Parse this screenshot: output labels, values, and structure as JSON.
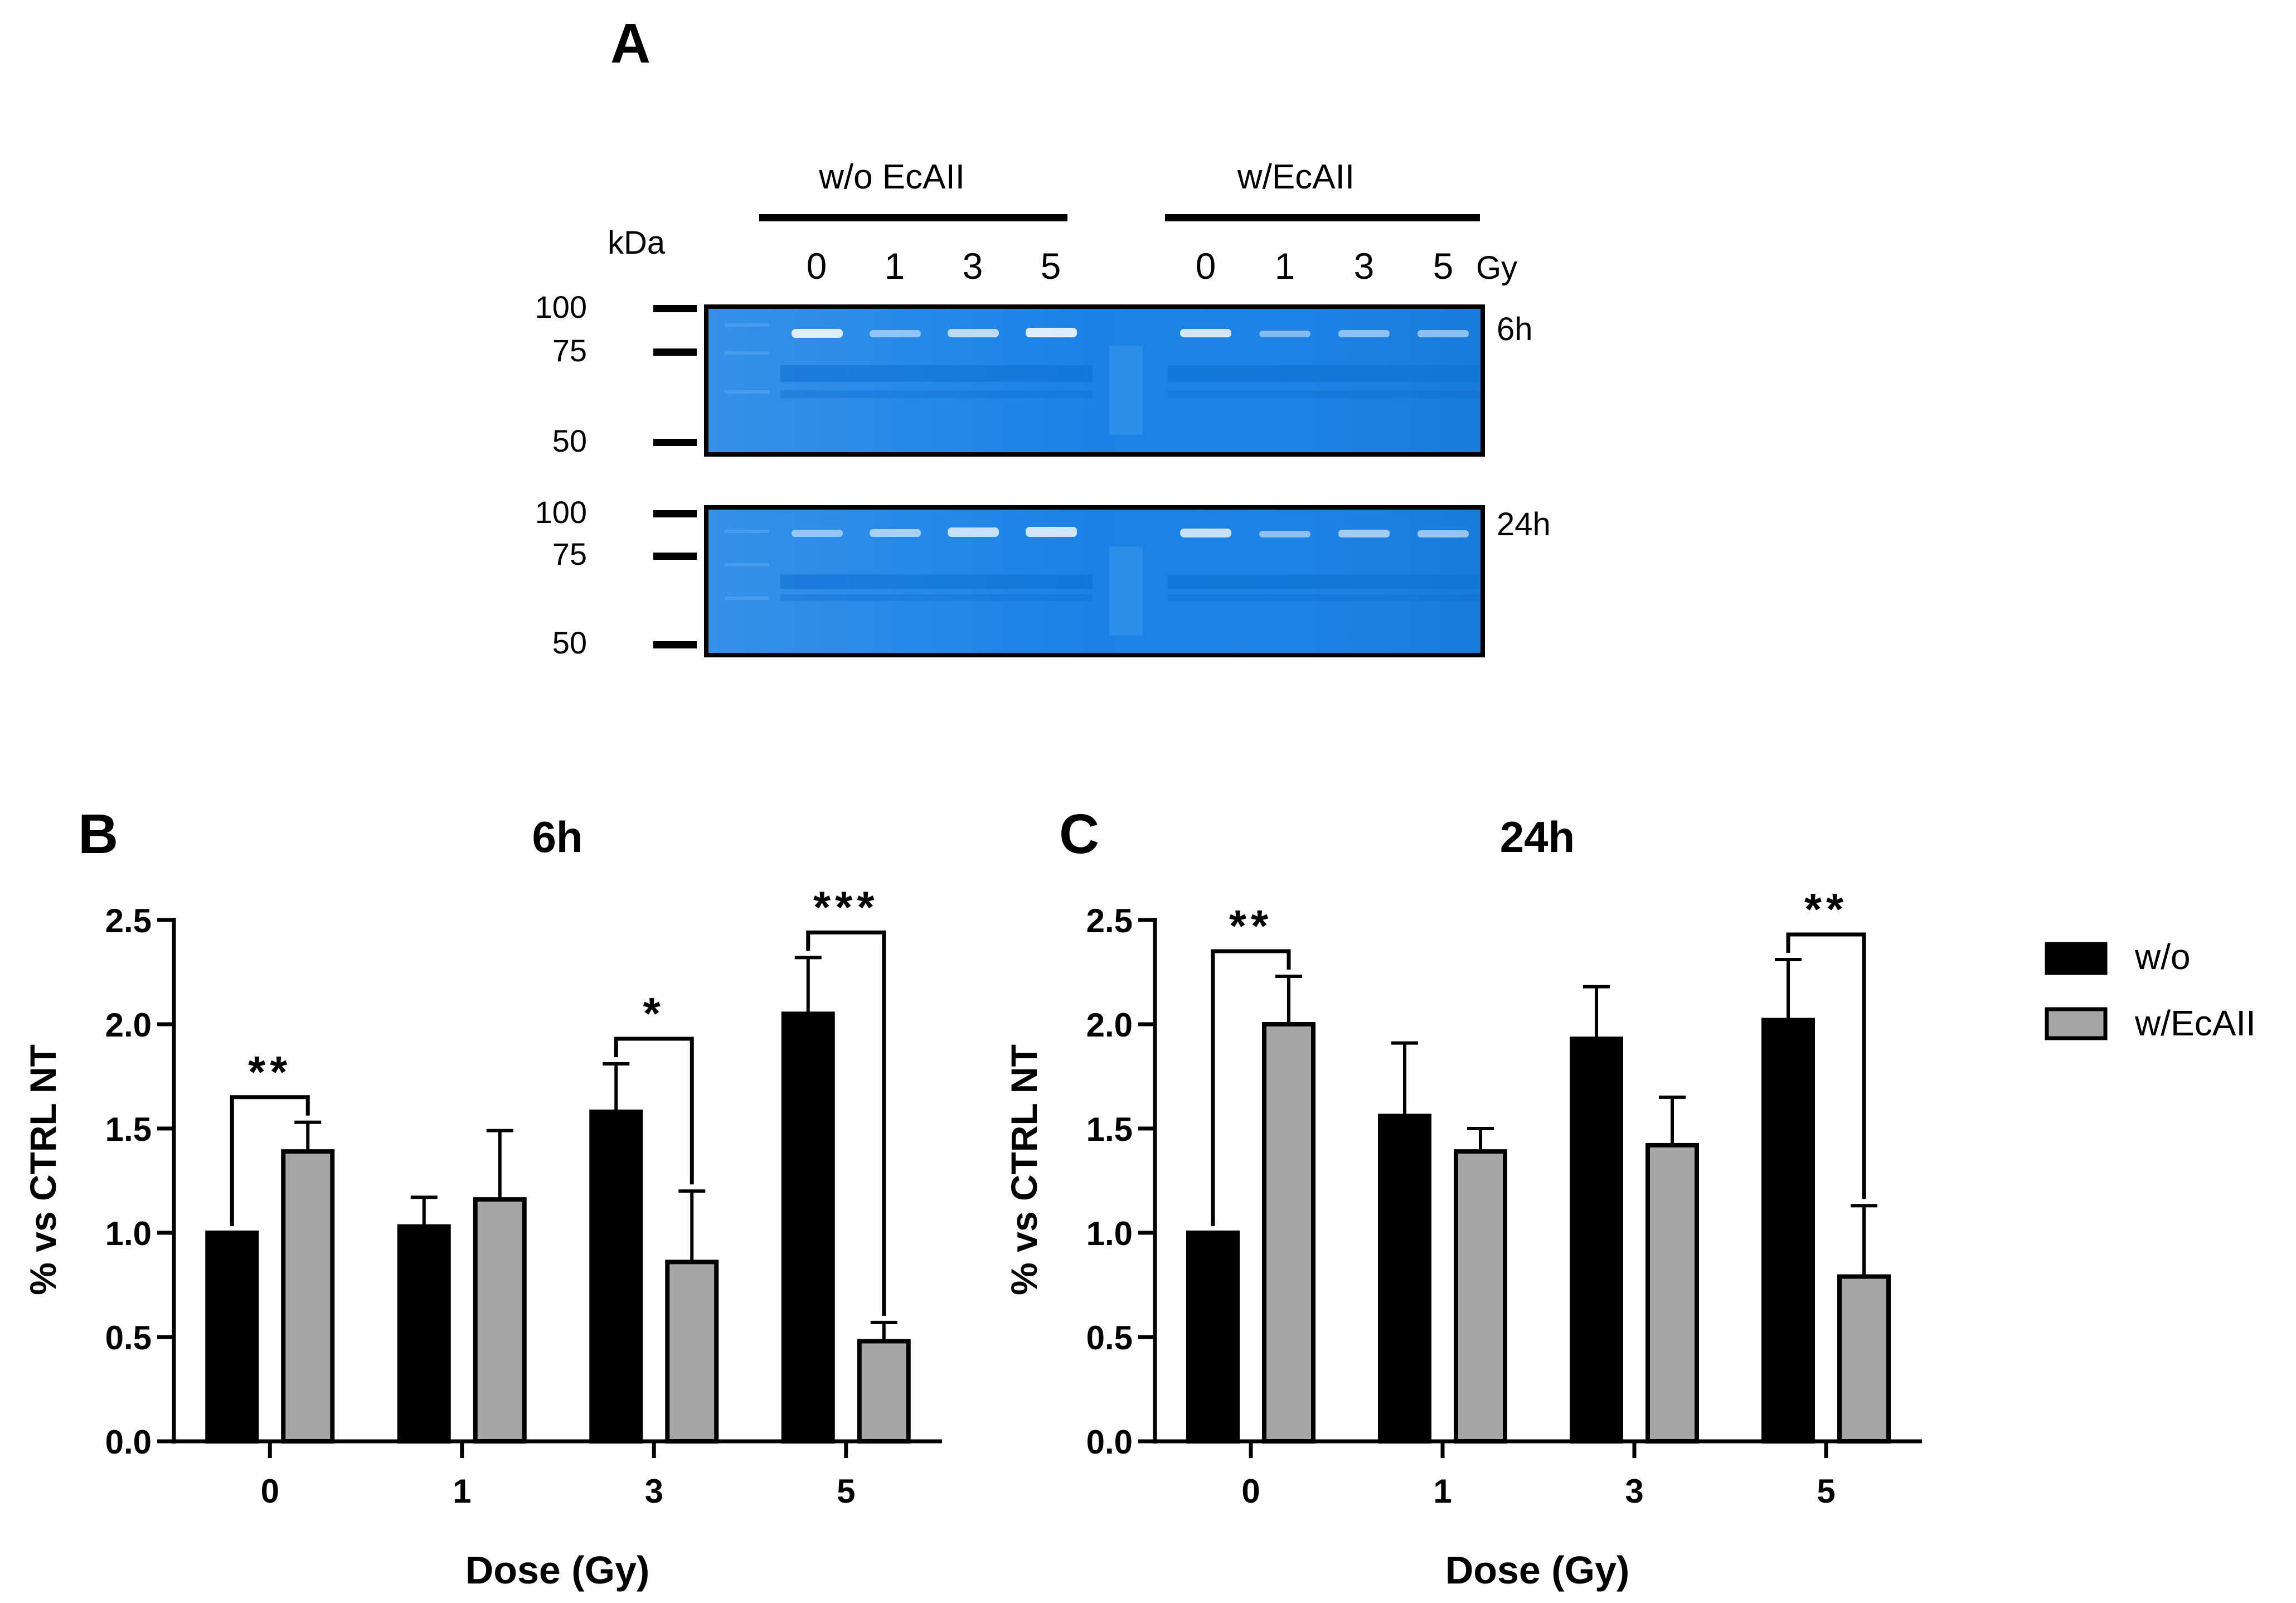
{
  "panel_a": {
    "label": "A",
    "group_labels": [
      "w/o EcAII",
      "w/EcAII"
    ],
    "kda_label": "kDa",
    "dose_labels": [
      "0",
      "1",
      "3",
      "5",
      "0",
      "1",
      "3",
      "5"
    ],
    "gy_unit": "Gy",
    "mw_markers": [
      "100",
      "75",
      "50"
    ],
    "time_labels": [
      "6h",
      "24h"
    ],
    "gel_color": "#1a82e6"
  },
  "legend": {
    "items": [
      {
        "name": "w/o",
        "color": "#000000"
      },
      {
        "name": "w/EcAII",
        "color": "#a6a6a6"
      }
    ]
  },
  "chart_data": [
    {
      "panel": "B",
      "type": "bar",
      "title": "6h",
      "xlabel": "Dose (Gy)",
      "ylabel": "% vs CTRL NT",
      "categories": [
        "0",
        "1",
        "3",
        "5"
      ],
      "ylim": [
        0,
        2.5
      ],
      "yticks": [
        "0.0",
        "0.5",
        "1.0",
        "1.5",
        "2.0",
        "2.5"
      ],
      "series": [
        {
          "name": "w/o",
          "values": [
            1.0,
            1.03,
            1.58,
            2.05
          ],
          "errors": [
            0,
            0.14,
            0.23,
            0.27
          ]
        },
        {
          "name": "w/EcAII",
          "values": [
            1.39,
            1.16,
            0.86,
            0.48
          ],
          "errors": [
            0.14,
            0.33,
            0.34,
            0.09
          ]
        }
      ],
      "significance": [
        {
          "category": "0",
          "label": "**"
        },
        {
          "category": "3",
          "label": "*"
        },
        {
          "category": "5",
          "label": "***"
        }
      ]
    },
    {
      "panel": "C",
      "type": "bar",
      "title": "24h",
      "xlabel": "Dose (Gy)",
      "ylabel": "% vs CTRL NT",
      "categories": [
        "0",
        "1",
        "3",
        "5"
      ],
      "ylim": [
        0,
        2.5
      ],
      "yticks": [
        "0.0",
        "0.5",
        "1.0",
        "1.5",
        "2.0",
        "2.5"
      ],
      "series": [
        {
          "name": "w/o",
          "values": [
            1.0,
            1.56,
            1.93,
            2.02
          ],
          "errors": [
            0,
            0.35,
            0.25,
            0.29
          ]
        },
        {
          "name": "w/EcAII",
          "values": [
            2.0,
            1.39,
            1.42,
            0.79
          ],
          "errors": [
            0.23,
            0.11,
            0.23,
            0.34
          ]
        }
      ],
      "significance": [
        {
          "category": "0",
          "label": "**"
        },
        {
          "category": "5",
          "label": "**"
        }
      ]
    }
  ]
}
